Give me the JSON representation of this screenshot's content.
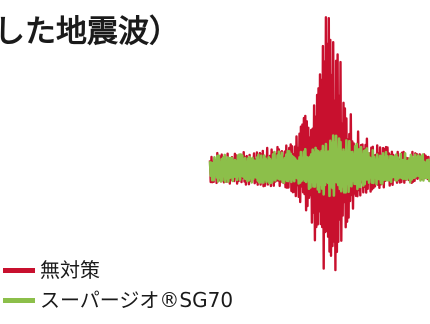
{
  "chart_data": {
    "type": "line",
    "title": "した地震波）",
    "xlabel": "",
    "ylabel": "",
    "grid": false,
    "legend_position": "bottom-left",
    "x_range": [
      0,
      100
    ],
    "y_range": [
      -1,
      1
    ],
    "series": [
      {
        "name": "無対策",
        "color": "#c8102e",
        "envelope": [
          {
            "x": 0,
            "a": 0.1
          },
          {
            "x": 20,
            "a": 0.12
          },
          {
            "x": 35,
            "a": 0.16
          },
          {
            "x": 40,
            "a": 0.22
          },
          {
            "x": 45,
            "a": 0.4
          },
          {
            "x": 50,
            "a": 0.7
          },
          {
            "x": 52,
            "a": 0.95
          },
          {
            "x": 54,
            "a": 1.0
          },
          {
            "x": 57,
            "a": 0.9
          },
          {
            "x": 60,
            "a": 0.6
          },
          {
            "x": 63,
            "a": 0.38
          },
          {
            "x": 68,
            "a": 0.22
          },
          {
            "x": 75,
            "a": 0.16
          },
          {
            "x": 85,
            "a": 0.12
          },
          {
            "x": 100,
            "a": 0.1
          }
        ]
      },
      {
        "name": "スーパージオ®SG70",
        "color": "#8cbf4a",
        "envelope": [
          {
            "x": 0,
            "a": 0.09
          },
          {
            "x": 20,
            "a": 0.1
          },
          {
            "x": 40,
            "a": 0.12
          },
          {
            "x": 50,
            "a": 0.18
          },
          {
            "x": 55,
            "a": 0.22
          },
          {
            "x": 62,
            "a": 0.18
          },
          {
            "x": 75,
            "a": 0.12
          },
          {
            "x": 100,
            "a": 0.09
          }
        ]
      }
    ]
  }
}
